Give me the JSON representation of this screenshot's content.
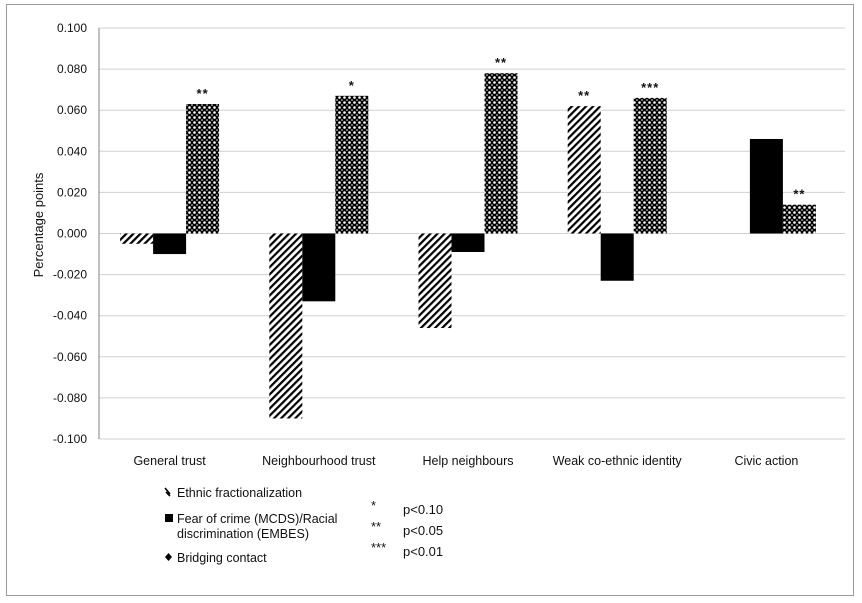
{
  "chart_data": {
    "type": "bar",
    "ylabel": "Percentage points",
    "ylim": [
      -0.1,
      0.1
    ],
    "ytick_step": 0.02,
    "yticks": [
      "0.100",
      "0.080",
      "0.060",
      "0.040",
      "0.020",
      "0.000",
      "-0.020",
      "-0.040",
      "-0.060",
      "-0.080",
      "-0.100"
    ],
    "grid": true,
    "categories": [
      "General trust",
      "Neighbourhood trust",
      "Help neighbours",
      "Weak co-ethnic identity",
      "Civic action"
    ],
    "series": [
      {
        "name": "Ethnic fractionalization",
        "pattern": "diagonal-hatch",
        "values": [
          -0.005,
          -0.09,
          -0.046,
          0.062,
          null
        ],
        "sig": [
          "",
          "",
          "",
          "**",
          ""
        ]
      },
      {
        "name": "Fear of crime (MCDS)/Racial discrimination (EMBES)",
        "pattern": "solid-black",
        "values": [
          -0.01,
          -0.033,
          -0.009,
          -0.023,
          0.046
        ],
        "sig": [
          "",
          "",
          "",
          "",
          ""
        ]
      },
      {
        "name": "Bridging contact",
        "pattern": "dotted",
        "values": [
          0.063,
          0.067,
          0.078,
          0.066,
          0.014
        ],
        "sig": [
          "**",
          "*",
          "**",
          "***",
          "**"
        ]
      }
    ],
    "legend_position": "bottom-left",
    "significance_legend": [
      {
        "mark": "*",
        "label": "p<0.10"
      },
      {
        "mark": "**",
        "label": "p<0.05"
      },
      {
        "mark": "***",
        "label": "p<0.01"
      }
    ],
    "colors": {
      "bar": "#000000",
      "grid": "#d0d0d0",
      "axis": "#808080"
    }
  }
}
